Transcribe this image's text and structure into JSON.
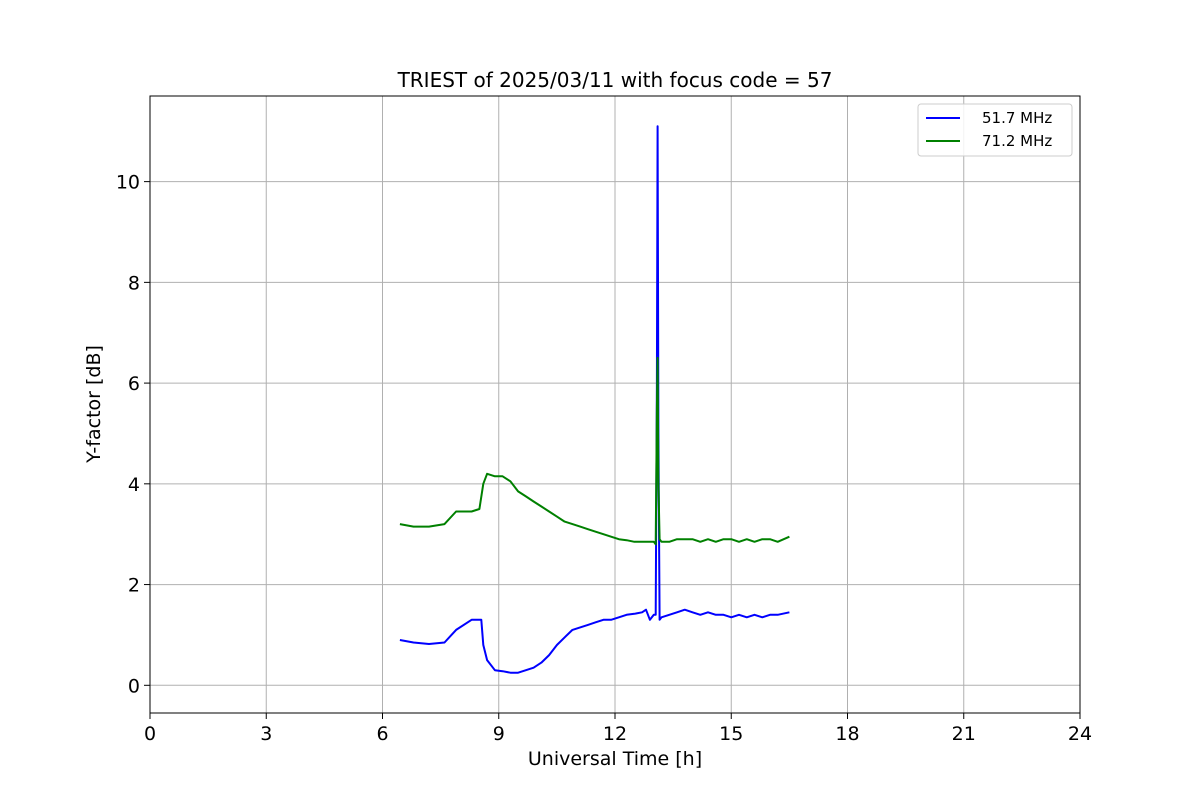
{
  "chart_data": {
    "type": "line",
    "title": "TRIEST of 2025/03/11 with focus code = 57",
    "xlabel": "Universal Time [h]",
    "ylabel": "Y-factor [dB]",
    "xlim": [
      0,
      24
    ],
    "ylim": [
      -0.55,
      11.7
    ],
    "xticks": [
      0,
      3,
      6,
      9,
      12,
      15,
      18,
      21,
      24
    ],
    "yticks": [
      0,
      2,
      4,
      6,
      8,
      10
    ],
    "grid": true,
    "legend": "top-right",
    "series": [
      {
        "name": "51.7 MHz",
        "color": "#0000ff",
        "x": [
          6.45,
          6.8,
          7.2,
          7.6,
          7.9,
          8.3,
          8.55,
          8.6,
          8.7,
          8.9,
          9.1,
          9.3,
          9.5,
          9.7,
          9.9,
          10.1,
          10.3,
          10.5,
          10.7,
          10.9,
          11.1,
          11.3,
          11.5,
          11.7,
          11.9,
          12.1,
          12.3,
          12.5,
          12.7,
          12.8,
          12.9,
          13.0,
          13.05,
          13.08,
          13.1,
          13.12,
          13.15,
          13.2,
          13.4,
          13.6,
          13.8,
          14.0,
          14.2,
          14.4,
          14.6,
          14.8,
          15.0,
          15.2,
          15.4,
          15.6,
          15.8,
          16.0,
          16.2,
          16.5
        ],
        "y": [
          0.9,
          0.85,
          0.82,
          0.85,
          1.1,
          1.3,
          1.3,
          0.8,
          0.5,
          0.3,
          0.28,
          0.25,
          0.25,
          0.3,
          0.35,
          0.45,
          0.6,
          0.8,
          0.95,
          1.1,
          1.15,
          1.2,
          1.25,
          1.3,
          1.3,
          1.35,
          1.4,
          1.42,
          1.45,
          1.5,
          1.3,
          1.4,
          1.4,
          6.0,
          11.1,
          5.0,
          1.3,
          1.35,
          1.4,
          1.45,
          1.5,
          1.45,
          1.4,
          1.45,
          1.4,
          1.4,
          1.35,
          1.4,
          1.35,
          1.4,
          1.35,
          1.4,
          1.4,
          1.45
        ]
      },
      {
        "name": "71.2 MHz",
        "color": "#008000",
        "x": [
          6.45,
          6.8,
          7.2,
          7.6,
          7.9,
          8.3,
          8.5,
          8.6,
          8.7,
          8.9,
          9.1,
          9.3,
          9.5,
          9.7,
          9.9,
          10.1,
          10.3,
          10.5,
          10.7,
          10.9,
          11.1,
          11.3,
          11.5,
          11.7,
          11.9,
          12.1,
          12.3,
          12.5,
          12.7,
          12.9,
          13.0,
          13.05,
          13.08,
          13.1,
          13.12,
          13.15,
          13.2,
          13.4,
          13.6,
          13.8,
          14.0,
          14.2,
          14.4,
          14.6,
          14.8,
          15.0,
          15.2,
          15.4,
          15.6,
          15.8,
          16.0,
          16.2,
          16.5
        ],
        "y": [
          3.2,
          3.15,
          3.15,
          3.2,
          3.45,
          3.45,
          3.5,
          4.0,
          4.2,
          4.15,
          4.15,
          4.05,
          3.85,
          3.75,
          3.65,
          3.55,
          3.45,
          3.35,
          3.25,
          3.2,
          3.15,
          3.1,
          3.05,
          3.0,
          2.95,
          2.9,
          2.88,
          2.85,
          2.85,
          2.85,
          2.85,
          2.8,
          5.5,
          6.5,
          4.0,
          2.9,
          2.85,
          2.85,
          2.9,
          2.9,
          2.9,
          2.85,
          2.9,
          2.85,
          2.9,
          2.9,
          2.85,
          2.9,
          2.85,
          2.9,
          2.9,
          2.85,
          2.95
        ]
      }
    ]
  }
}
